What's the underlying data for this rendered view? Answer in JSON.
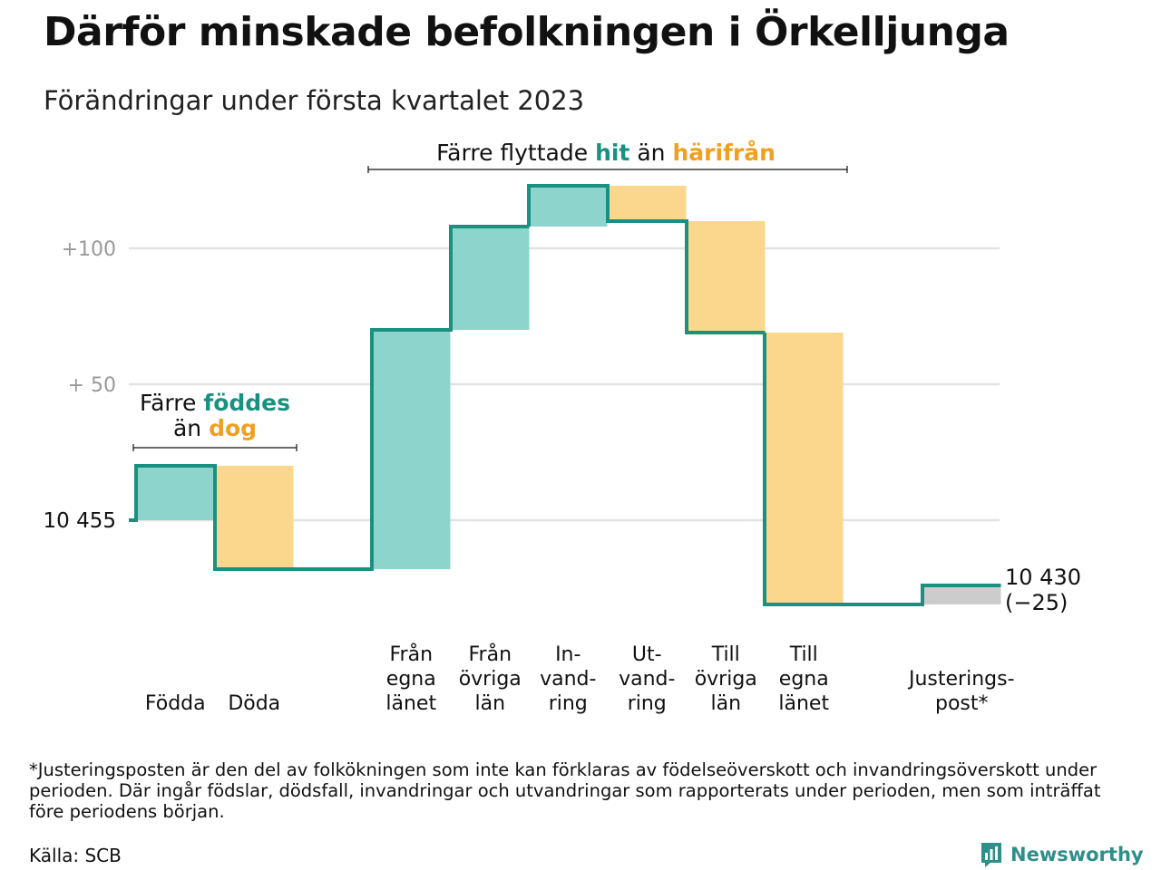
{
  "title": "Därför minskade befolkningen i Örkelljunga",
  "subtitle": "Förändringar under första kvartalet 2023",
  "chart_data": {
    "type": "waterfall",
    "start_value": 10455,
    "start_label": "10 455",
    "end_value": 10430,
    "end_label": "10 430",
    "end_change_label": "(−25)",
    "ylim_relative": [
      -37,
      125
    ],
    "y_ticks": [
      {
        "value": 50,
        "label": "+ 50"
      },
      {
        "value": 100,
        "label": "+100"
      }
    ],
    "steps": [
      {
        "label_lines": [
          "Födda"
        ],
        "value": 20,
        "type": "in"
      },
      {
        "label_lines": [
          "Döda"
        ],
        "value": -38,
        "type": "out"
      },
      {
        "label_lines": [
          "Från",
          "egna",
          "länet"
        ],
        "value": 88,
        "type": "in"
      },
      {
        "label_lines": [
          "Från",
          "övriga",
          "län"
        ],
        "value": 38,
        "type": "in"
      },
      {
        "label_lines": [
          "In-",
          "vand-",
          "ring"
        ],
        "value": 15,
        "type": "in"
      },
      {
        "label_lines": [
          "Ut-",
          "vand-",
          "ring"
        ],
        "value": -13,
        "type": "out"
      },
      {
        "label_lines": [
          "Till",
          "övriga",
          "län"
        ],
        "value": -41,
        "type": "out"
      },
      {
        "label_lines": [
          "Till",
          "egna",
          "länet"
        ],
        "value": -100,
        "type": "out"
      },
      {
        "label_lines": [
          "Justerings-",
          "post*"
        ],
        "value": 7,
        "type": "adjustment"
      }
    ],
    "annotations": {
      "births": {
        "prefix": "Färre",
        "in_word": "föddes",
        "mid": "än",
        "out_word": "dog"
      },
      "migration": {
        "prefix": "Färre flyttade",
        "in_word": "hit",
        "mid": "än",
        "out_word": "härifrån"
      }
    },
    "colors": {
      "line": "#1a9080",
      "in_fill": "#8dd5cc",
      "out_fill": "#fbd78e",
      "adjustment_fill": "#cccccc",
      "in_text": "#1a9080",
      "out_text": "#f0a020",
      "grid": "#e2e2e2",
      "tick_text": "#999999"
    }
  },
  "footnote": "*Justeringsposten är den del av folkökningen som inte kan förklaras av födelseöverskott och invandringsöverskott under perioden. Där ingår födslar, dödsfall, invandringar och utvandringar som rapporterats under perioden, men som inträffat före periodens början.",
  "source": "Källa: SCB",
  "brand": {
    "name": "Newsworthy",
    "icon": "newsworthy-logo-icon"
  }
}
